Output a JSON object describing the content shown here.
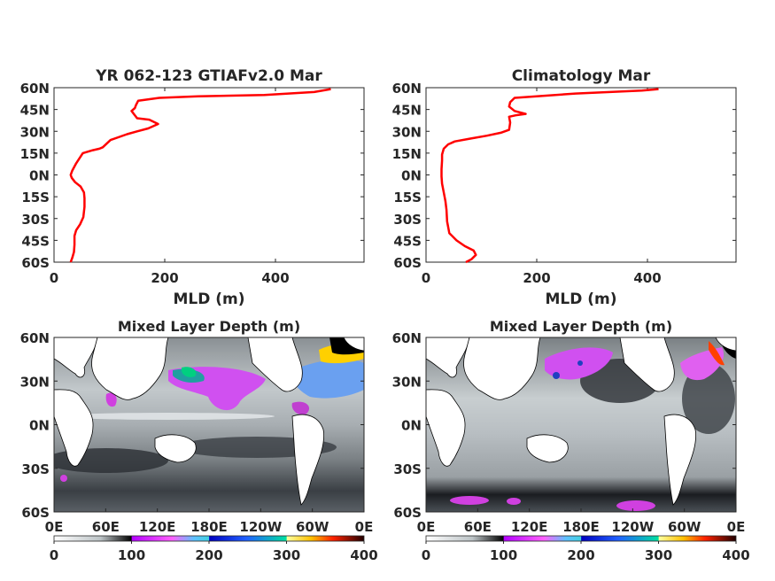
{
  "chart_data": [
    {
      "type": "line",
      "title": "YR 062-123 GTIAFv2.0 Mar",
      "xlabel": "MLD (m)",
      "xlim": [
        0,
        560
      ],
      "ylim": [
        -60,
        60
      ],
      "xticks": [
        "0",
        "200",
        "400"
      ],
      "yticks": [
        "60N",
        "45N",
        "30N",
        "15N",
        "0N",
        "15S",
        "30S",
        "45S",
        "60S"
      ],
      "line_color": "#ff0000",
      "series": [
        {
          "x": [
            30,
            33,
            36,
            37,
            37,
            40,
            47,
            53,
            55,
            55,
            54,
            48,
            38,
            32,
            30,
            33,
            40,
            52,
            70,
            82,
            88,
            102,
            132,
            150,
            170,
            188,
            172,
            150,
            140,
            146,
            148,
            152,
            190,
            260,
            380,
            470,
            500
          ],
          "y": [
            -60,
            -57,
            -53,
            -48,
            -42,
            -38,
            -34,
            -29,
            -22,
            -16,
            -12,
            -8,
            -5,
            -2,
            0,
            3,
            8,
            15,
            17,
            18,
            19,
            24,
            28,
            30,
            32,
            35,
            38,
            39,
            44,
            46,
            48,
            51,
            53,
            54,
            55,
            57,
            59
          ]
        }
      ]
    },
    {
      "type": "line",
      "title": "Climatology Mar",
      "xlabel": "MLD (m)",
      "xlim": [
        0,
        560
      ],
      "ylim": [
        -60,
        60
      ],
      "xticks": [
        "0",
        "200",
        "400"
      ],
      "yticks": [
        "60N",
        "45N",
        "30N",
        "15N",
        "0N",
        "15S",
        "30S",
        "45S",
        "60S"
      ],
      "line_color": "#ff0000",
      "series": [
        {
          "x": [
            72,
            82,
            90,
            86,
            70,
            55,
            42,
            38,
            37,
            35,
            32,
            29,
            28,
            28,
            29,
            29,
            32,
            40,
            52,
            80,
            110,
            135,
            150,
            152,
            150,
            162,
            180,
            160,
            150,
            152,
            160,
            270,
            390,
            420
          ],
          "y": [
            -60,
            -58,
            -55,
            -52,
            -49,
            -45,
            -40,
            -32,
            -24,
            -18,
            -12,
            -6,
            -1,
            4,
            10,
            14,
            18,
            21,
            23,
            25,
            27,
            29,
            31,
            36,
            40,
            41,
            42,
            44,
            47,
            50,
            53,
            56,
            58,
            59
          ]
        }
      ]
    },
    {
      "type": "heatmap",
      "title": "Mixed Layer Depth (m)",
      "xticks": [
        "0E",
        "60E",
        "120E",
        "180E",
        "120W",
        "60W",
        "0E"
      ],
      "yticks": [
        "60N",
        "30N",
        "0N",
        "30S",
        "60S"
      ],
      "colorbar_ticks": [
        "0",
        "100",
        "200",
        "300",
        "400"
      ],
      "clim": [
        0,
        400
      ]
    },
    {
      "type": "heatmap",
      "title": "Mixed Layer Depth (m)",
      "xticks": [
        "0E",
        "60E",
        "120E",
        "180E",
        "120W",
        "60W",
        "0E"
      ],
      "yticks": [
        "60N",
        "30N",
        "0N",
        "30S",
        "60S"
      ],
      "colorbar_ticks": [
        "0",
        "100",
        "200",
        "300",
        "400"
      ],
      "clim": [
        0,
        400
      ]
    }
  ]
}
